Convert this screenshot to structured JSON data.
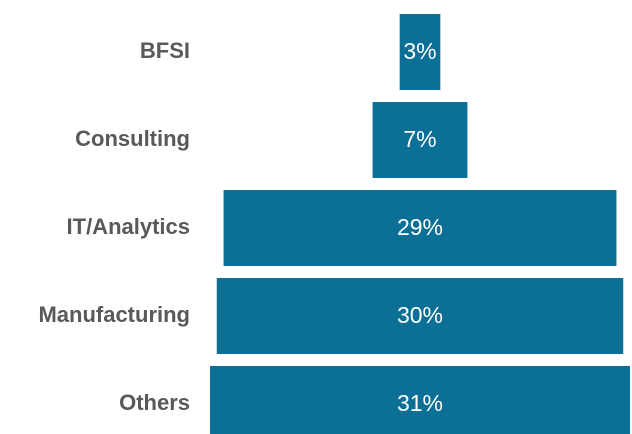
{
  "chart_data": {
    "type": "funnel",
    "categories": [
      "BFSI",
      "Consulting",
      "IT/Analytics",
      "Manufacturing",
      "Others"
    ],
    "values": [
      3,
      7,
      29,
      30,
      31
    ],
    "value_labels": [
      "3%",
      "7%",
      "29%",
      "30%",
      "31%"
    ],
    "color": "#0b6f96"
  }
}
